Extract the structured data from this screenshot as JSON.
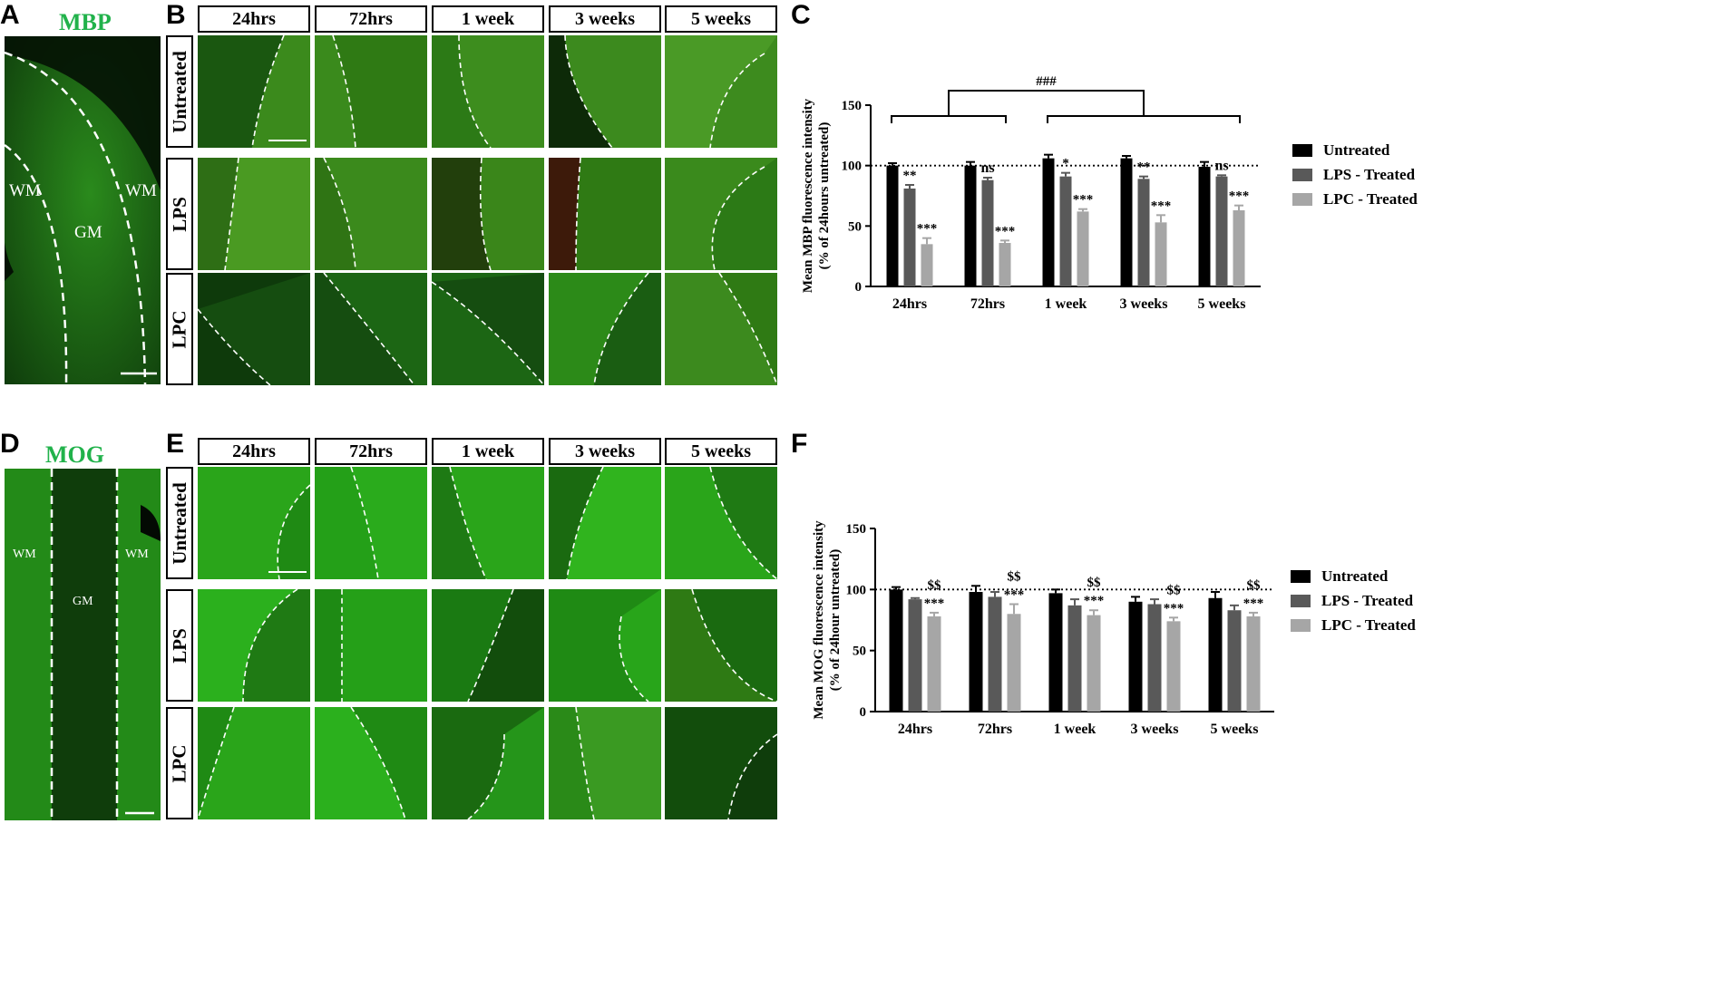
{
  "figure": {
    "panels": {
      "A": "A",
      "B": "B",
      "C": "C",
      "D": "D",
      "E": "E",
      "F": "F"
    },
    "top": {
      "stain": "MBP",
      "regions": {
        "wm_left": "WM",
        "gm": "GM",
        "wm_right": "WM"
      },
      "columns": [
        "24hrs",
        "72hrs",
        "1 week",
        "3 weeks",
        "5 weeks"
      ],
      "rows": [
        "Untreated",
        "LPS",
        "LPC"
      ]
    },
    "bottom": {
      "stain": "MOG",
      "regions": {
        "wm_left": "WM",
        "gm": "GM",
        "wm_right": "WM"
      },
      "columns": [
        "24hrs",
        "72hrs",
        "1 week",
        "3 weeks",
        "5 weeks"
      ],
      "rows": [
        "Untreated",
        "LPS",
        "LPC"
      ]
    },
    "colors": {
      "stain_title": "#21b24b",
      "untreated": "#000000",
      "lps": "#595959",
      "lpc": "#a6a6a6"
    }
  },
  "chart_data": [
    {
      "panel": "C",
      "type": "bar",
      "title": "",
      "xlabel": "",
      "ylabel": "Mean MBP  fluorescence intensity\n(% of 24hours untreated)",
      "categories": [
        "24hrs",
        "72hrs",
        "1 week",
        "3 weeks",
        "5 weeks"
      ],
      "ylim": [
        0,
        150
      ],
      "yticks": [
        0,
        50,
        100,
        150
      ],
      "reference_line": 100,
      "series": [
        {
          "name": "Untreated",
          "values": [
            100,
            100,
            106,
            106,
            99
          ],
          "errors": [
            2,
            3,
            3,
            2,
            4
          ]
        },
        {
          "name": "LPS - Treated",
          "values": [
            81,
            88,
            91,
            89,
            91
          ],
          "errors": [
            3,
            2,
            3,
            2,
            1
          ]
        },
        {
          "name": "LPC - Treated",
          "values": [
            35,
            36,
            62,
            53,
            63
          ],
          "errors": [
            5,
            2,
            2,
            6,
            4
          ]
        }
      ],
      "annotations": [
        {
          "category": "24hrs",
          "series": "LPS - Treated",
          "text": "**"
        },
        {
          "category": "24hrs",
          "series": "LPC - Treated",
          "text": "***"
        },
        {
          "category": "72hrs",
          "series": "LPS - Treated",
          "text": "ns"
        },
        {
          "category": "72hrs",
          "series": "LPC - Treated",
          "text": "***"
        },
        {
          "category": "1 week",
          "series": "LPS - Treated",
          "text": "*"
        },
        {
          "category": "1 week",
          "series": "LPC - Treated",
          "text": "***"
        },
        {
          "category": "3 weeks",
          "series": "LPS - Treated",
          "text": "**"
        },
        {
          "category": "3 weeks",
          "series": "LPC - Treated",
          "text": "***"
        },
        {
          "category": "5 weeks",
          "series": "LPS - Treated",
          "text": "ns"
        },
        {
          "category": "5 weeks",
          "series": "LPC - Treated",
          "text": "***"
        }
      ],
      "bracket": {
        "label": "###",
        "left_group": [
          "24hrs",
          "72hrs"
        ],
        "right_group": [
          "1 week",
          "3 weeks",
          "5 weeks"
        ]
      },
      "legend_position": "right"
    },
    {
      "panel": "F",
      "type": "bar",
      "title": "",
      "xlabel": "",
      "ylabel": "Mean MOG fluorescence intensity\n(% of 24hour untreated)",
      "categories": [
        "24hrs",
        "72hrs",
        "1 week",
        "3 weeks",
        "5 weeks"
      ],
      "ylim": [
        0,
        150
      ],
      "yticks": [
        0,
        50,
        100,
        150
      ],
      "reference_line": 100,
      "series": [
        {
          "name": "Untreated",
          "values": [
            100,
            98,
            97,
            90,
            93
          ],
          "errors": [
            2,
            5,
            3,
            4,
            5
          ]
        },
        {
          "name": "LPS - Treated",
          "values": [
            92,
            94,
            87,
            88,
            83
          ],
          "errors": [
            1,
            4,
            5,
            4,
            4
          ]
        },
        {
          "name": "LPC - Treated",
          "values": [
            78,
            80,
            79,
            74,
            78
          ],
          "errors": [
            3,
            8,
            4,
            3,
            3
          ]
        }
      ],
      "annotations": [
        {
          "category": "24hrs",
          "series": "LPC - Treated",
          "text": "***"
        },
        {
          "category": "24hrs",
          "series": "LPC - Treated",
          "text": "$$"
        },
        {
          "category": "72hrs",
          "series": "LPC - Treated",
          "text": "***"
        },
        {
          "category": "72hrs",
          "series": "LPC - Treated",
          "text": "$$"
        },
        {
          "category": "1 week",
          "series": "LPC - Treated",
          "text": "***"
        },
        {
          "category": "1 week",
          "series": "LPC - Treated",
          "text": "$$"
        },
        {
          "category": "3 weeks",
          "series": "LPC - Treated",
          "text": "***"
        },
        {
          "category": "3 weeks",
          "series": "LPC - Treated",
          "text": "$$"
        },
        {
          "category": "5 weeks",
          "series": "LPC - Treated",
          "text": "***"
        },
        {
          "category": "5 weeks",
          "series": "LPC - Treated",
          "text": "$$"
        }
      ],
      "legend_position": "right"
    }
  ]
}
